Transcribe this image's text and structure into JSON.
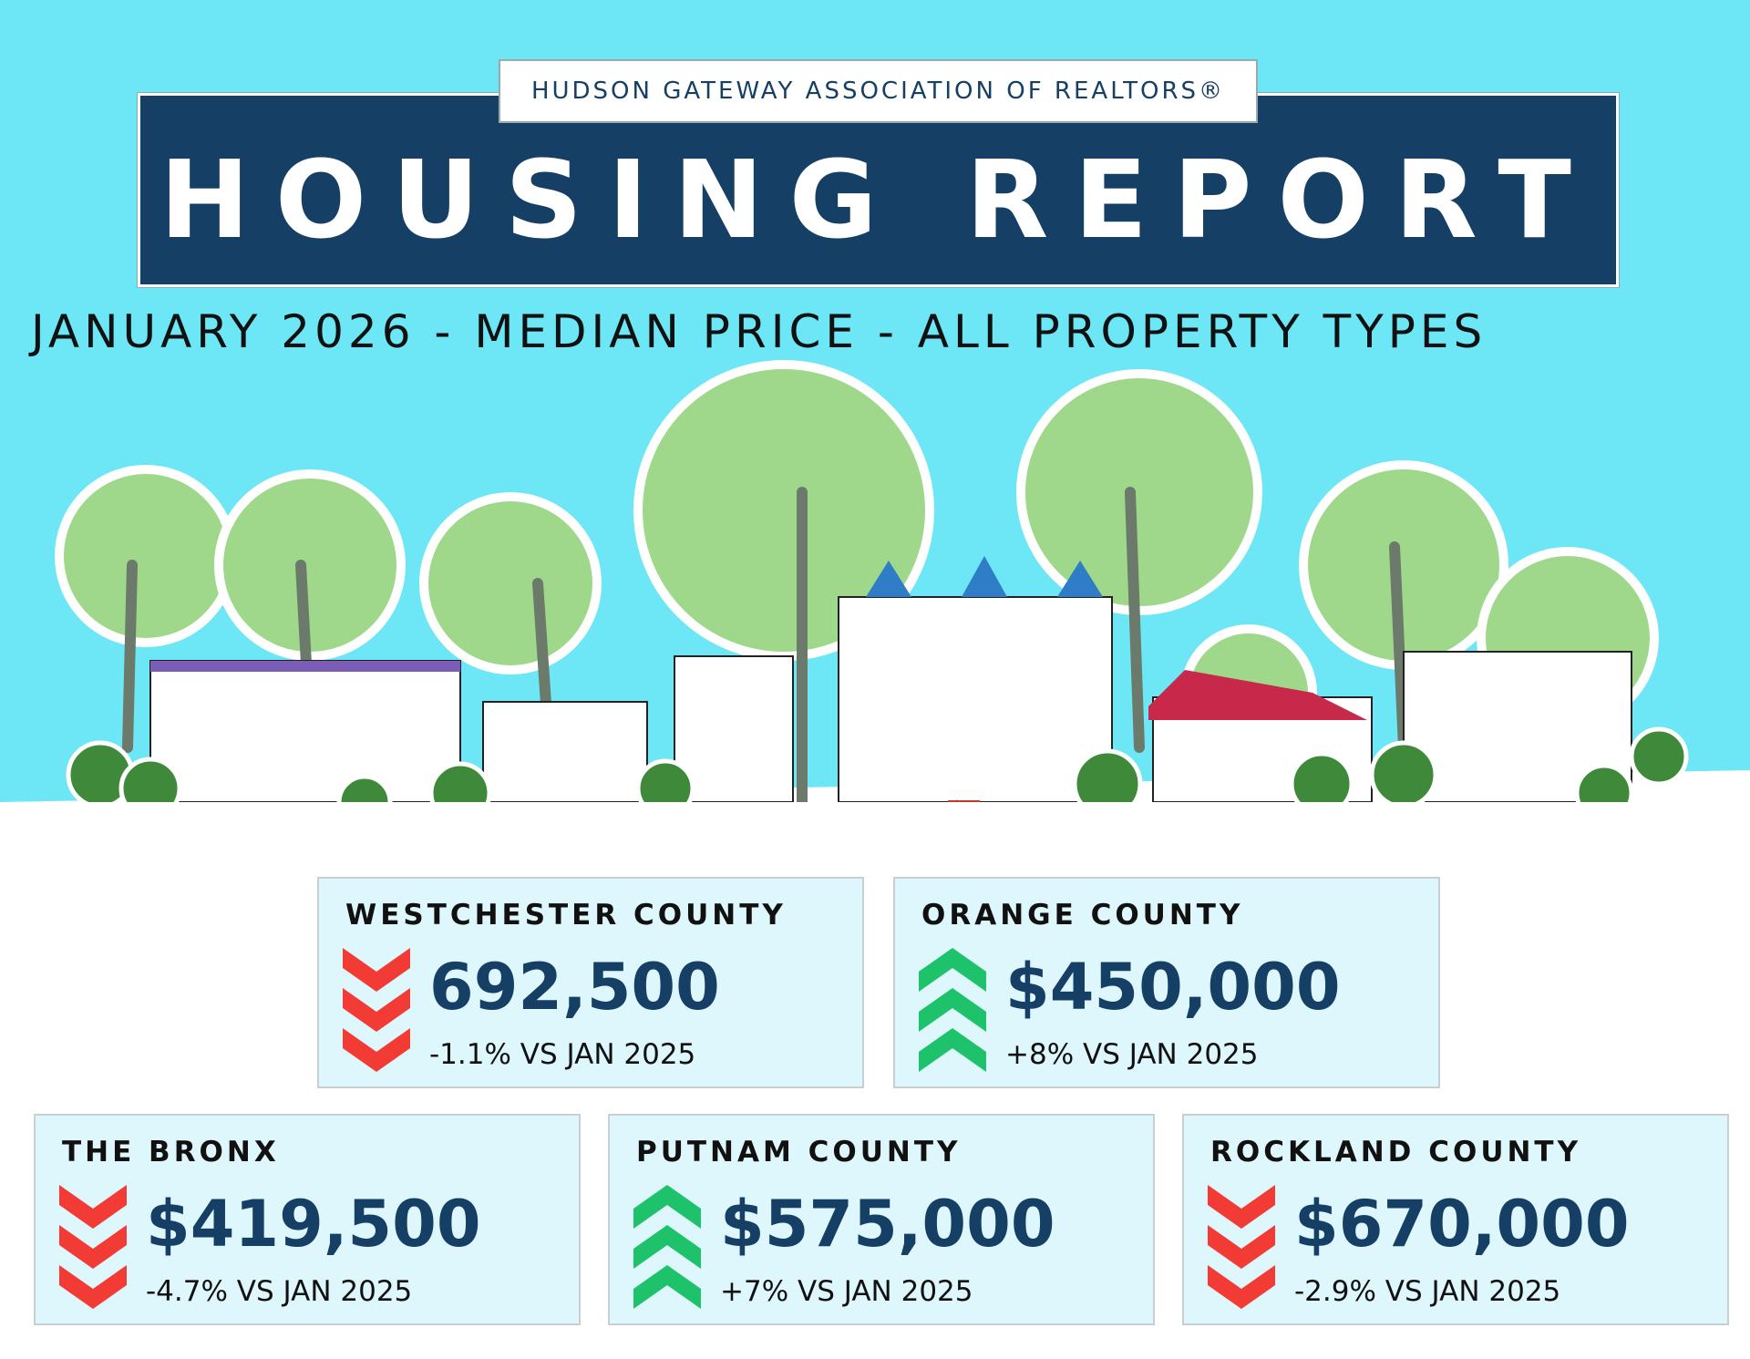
{
  "header": {
    "org": "HUDSON GATEWAY ASSOCIATION OF REALTORS®",
    "title": "HOUSING REPORT",
    "subtitle": "JANUARY 2026 - MEDIAN PRICE - ALL PROPERTY TYPES"
  },
  "cards": [
    {
      "name": "WESTCHESTER COUNTY",
      "price": "692,500",
      "change": "-1.1% VS JAN 2025",
      "trend": "down"
    },
    {
      "name": "ORANGE COUNTY",
      "price": "$450,000",
      "change": "+8% VS JAN 2025",
      "trend": "up"
    },
    {
      "name": "THE BRONX",
      "price": "$419,500",
      "change": "-4.7% VS JAN 2025",
      "trend": "down"
    },
    {
      "name": "PUTNAM COUNTY",
      "price": "$575,000",
      "change": "+7% VS JAN 2025",
      "trend": "up"
    },
    {
      "name": "ROCKLAND COUNTY",
      "price": "$670,000",
      "change": "-2.9% VS JAN 2025",
      "trend": "down"
    }
  ]
}
